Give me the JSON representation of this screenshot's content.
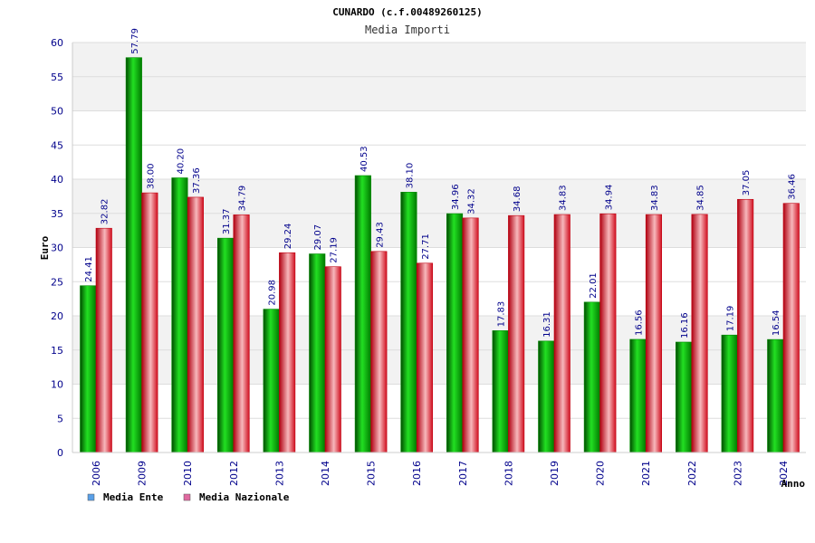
{
  "chart_data": {
    "type": "bar",
    "title": "CUNARDO (c.f.00489260125)",
    "subtitle": "Media Importi",
    "xlabel": "Anno",
    "ylabel": "Euro",
    "ylim": [
      0,
      60
    ],
    "ytick_step": 5,
    "yticks": [
      "0",
      "5",
      "10",
      "15",
      "20",
      "25",
      "30",
      "35",
      "40",
      "45",
      "50",
      "55",
      "60"
    ],
    "categories": [
      "2006",
      "2009",
      "2010",
      "2012",
      "2013",
      "2014",
      "2015",
      "2016",
      "2017",
      "2018",
      "2019",
      "2020",
      "2021",
      "2022",
      "2023",
      "2024"
    ],
    "series": [
      {
        "name": "Media Ente",
        "color": "#00c400",
        "legend_color": "#5aa0e8",
        "values": [
          24.41,
          57.79,
          40.2,
          31.37,
          20.98,
          29.07,
          40.53,
          38.1,
          34.96,
          17.83,
          16.31,
          22.01,
          16.56,
          16.16,
          17.19,
          16.54
        ],
        "labels": [
          "24.41",
          "57.79",
          "40.20",
          "31.37",
          "20.98",
          "29.07",
          "40.53",
          "38.10",
          "34.96",
          "17.83",
          "16.31",
          "22.01",
          "16.56",
          "16.16",
          "17.19",
          "16.54"
        ]
      },
      {
        "name": "Media Nazionale",
        "color": "#e81020",
        "legend_color": "#e06aa0",
        "values": [
          32.82,
          38.0,
          37.36,
          34.79,
          29.24,
          27.19,
          29.43,
          27.71,
          34.32,
          34.68,
          34.83,
          34.94,
          34.83,
          34.85,
          37.05,
          36.46
        ],
        "labels": [
          "32.82",
          "38.00",
          "37.36",
          "34.79",
          "29.24",
          "27.19",
          "29.43",
          "27.71",
          "34.32",
          "34.68",
          "34.83",
          "34.94",
          "34.83",
          "34.85",
          "37.05",
          "36.46"
        ]
      }
    ],
    "grid": true,
    "legend_position": "bottom-left"
  }
}
